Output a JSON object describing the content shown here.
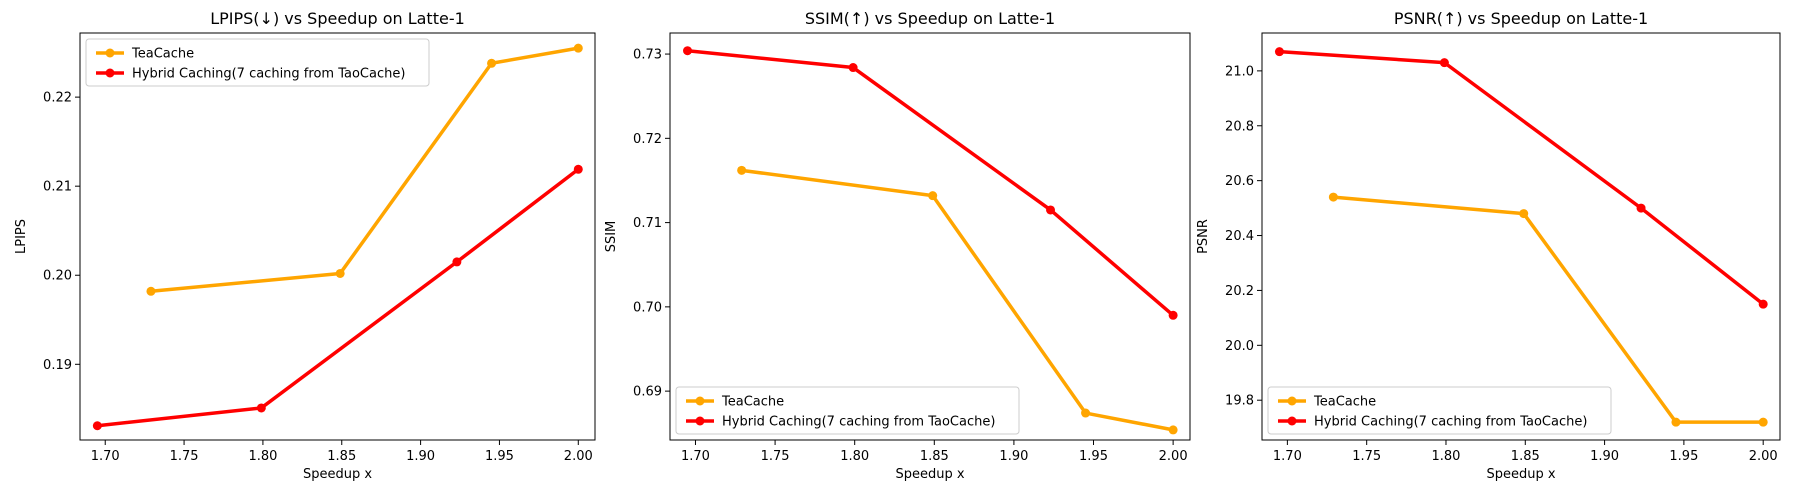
{
  "colors": {
    "teacache": "#FFA500",
    "hybrid": "#FF0000",
    "axis": "#000000"
  },
  "chart_data": [
    {
      "type": "line",
      "title": "LPIPS(↓) vs Speedup on Latte-1",
      "xlabel": "Speedup x",
      "ylabel": "LPIPS",
      "xlim": [
        1.684,
        2.0106
      ],
      "ylim": [
        0.1815,
        0.2272
      ],
      "xticks": [
        1.7,
        1.75,
        1.8,
        1.85,
        1.9,
        1.95,
        2.0
      ],
      "xtick_labels": [
        "1.70",
        "1.75",
        "1.80",
        "1.85",
        "1.90",
        "1.95",
        "2.00"
      ],
      "yticks": [
        0.19,
        0.2,
        0.21,
        0.22
      ],
      "ytick_labels": [
        "0.19",
        "0.20",
        "0.21",
        "0.22"
      ],
      "legend_position": "top-left",
      "series": [
        {
          "name": "TeaCache",
          "color": "#FFA500",
          "x": [
            1.729,
            1.849,
            1.945,
            2.0
          ],
          "y": [
            0.1982,
            0.2002,
            0.2238,
            0.2255
          ]
        },
        {
          "name": "Hybrid Caching(7 caching from TaoCache)",
          "color": "#FF0000",
          "x": [
            1.695,
            1.799,
            1.923,
            2.0
          ],
          "y": [
            0.1831,
            0.1851,
            0.2015,
            0.2119
          ]
        }
      ]
    },
    {
      "type": "line",
      "title": "SSIM(↑) vs Speedup on Latte-1",
      "xlabel": "Speedup x",
      "ylabel": "SSIM",
      "xlim": [
        1.684,
        2.0106
      ],
      "ylim": [
        0.6842,
        0.7325
      ],
      "xticks": [
        1.7,
        1.75,
        1.8,
        1.85,
        1.9,
        1.95,
        2.0
      ],
      "xtick_labels": [
        "1.70",
        "1.75",
        "1.80",
        "1.85",
        "1.90",
        "1.95",
        "2.00"
      ],
      "yticks": [
        0.69,
        0.7,
        0.71,
        0.72,
        0.73
      ],
      "ytick_labels": [
        "0.69",
        "0.70",
        "0.71",
        "0.72",
        "0.73"
      ],
      "legend_position": "bottom-left",
      "series": [
        {
          "name": "TeaCache",
          "color": "#FFA500",
          "x": [
            1.729,
            1.849,
            1.945,
            2.0
          ],
          "y": [
            0.7162,
            0.7132,
            0.6874,
            0.6854
          ]
        },
        {
          "name": "Hybrid Caching(7 caching from TaoCache)",
          "color": "#FF0000",
          "x": [
            1.695,
            1.799,
            1.923,
            2.0
          ],
          "y": [
            0.7304,
            0.7284,
            0.7115,
            0.699
          ]
        }
      ]
    },
    {
      "type": "line",
      "title": "PSNR(↑) vs Speedup on Latte-1",
      "xlabel": "Speedup x",
      "ylabel": "PSNR",
      "xlim": [
        1.684,
        2.0106
      ],
      "ylim": [
        19.655,
        21.138
      ],
      "xticks": [
        1.7,
        1.75,
        1.8,
        1.85,
        1.9,
        1.95,
        2.0
      ],
      "xtick_labels": [
        "1.70",
        "1.75",
        "1.80",
        "1.85",
        "1.90",
        "1.95",
        "2.00"
      ],
      "yticks": [
        19.8,
        20.0,
        20.2,
        20.4,
        20.6,
        20.8,
        21.0
      ],
      "ytick_labels": [
        "19.8",
        "20.0",
        "20.2",
        "20.4",
        "20.6",
        "20.8",
        "21.0"
      ],
      "legend_position": "bottom-left",
      "series": [
        {
          "name": "TeaCache",
          "color": "#FFA500",
          "x": [
            1.729,
            1.849,
            1.945,
            2.0
          ],
          "y": [
            20.54,
            20.48,
            19.72,
            19.72
          ]
        },
        {
          "name": "Hybrid Caching(7 caching from TaoCache)",
          "color": "#FF0000",
          "x": [
            1.695,
            1.799,
            1.923,
            2.0
          ],
          "y": [
            21.07,
            21.03,
            20.5,
            20.15
          ]
        }
      ]
    }
  ]
}
